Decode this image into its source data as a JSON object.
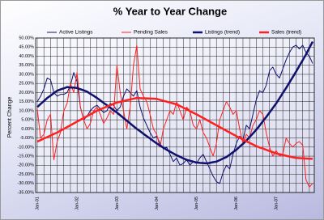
{
  "chart_data": {
    "type": "line",
    "title": "% Year to Year Change",
    "y_label": "Percent Change",
    "categories": [
      "Jan-01",
      null,
      null,
      null,
      null,
      null,
      null,
      null,
      null,
      null,
      null,
      null,
      "Jan-02",
      null,
      null,
      null,
      null,
      null,
      null,
      null,
      null,
      null,
      null,
      null,
      "Jan-03",
      null,
      null,
      null,
      null,
      null,
      null,
      null,
      null,
      null,
      null,
      null,
      "Jan-04",
      null,
      null,
      null,
      null,
      null,
      null,
      null,
      null,
      null,
      null,
      null,
      "Jan-05",
      null,
      null,
      null,
      null,
      null,
      null,
      null,
      null,
      null,
      null,
      null,
      "Jan-06",
      null,
      null,
      null,
      null,
      null,
      null,
      null,
      null,
      null,
      null,
      null,
      "Jan-07",
      null,
      null,
      null,
      null,
      null,
      null,
      null,
      null,
      null,
      null,
      null
    ],
    "ylim": [
      -35,
      50
    ],
    "yticks": [
      {
        "value": 50,
        "label": "50.00%"
      },
      {
        "value": 45,
        "label": "45.00%"
      },
      {
        "value": 40,
        "label": "40.00%"
      },
      {
        "value": 35,
        "label": "35.00%"
      },
      {
        "value": 30,
        "label": "30.00%"
      },
      {
        "value": 25,
        "label": "25.00%"
      },
      {
        "value": 20,
        "label": "20.00%"
      },
      {
        "value": 15,
        "label": "15.00%"
      },
      {
        "value": 10,
        "label": "10.00%"
      },
      {
        "value": 5,
        "label": "5.00%"
      },
      {
        "value": 0,
        "label": "0.00%"
      },
      {
        "value": -5,
        "label": "-5.00%"
      },
      {
        "value": -10,
        "label": "-10.00%"
      },
      {
        "value": -15,
        "label": "-15.00%"
      },
      {
        "value": -20,
        "label": "-20.00%"
      },
      {
        "value": -25,
        "label": "-25.00%"
      },
      {
        "value": -30,
        "label": "-30.00%"
      },
      {
        "value": -35,
        "label": "-35.00%"
      }
    ],
    "grid": true,
    "legend": "top",
    "series": [
      {
        "name": "Active Listings",
        "color": "#10106e",
        "width": 1,
        "values": [
          15,
          18,
          22,
          28,
          27,
          20,
          18,
          19,
          19,
          20,
          24,
          31,
          26,
          12,
          5,
          7,
          10,
          12,
          13,
          11,
          9,
          10,
          14,
          13,
          10,
          12,
          18,
          22,
          20,
          18,
          21,
          12,
          6,
          2,
          -2,
          -5,
          -4,
          -8,
          -11,
          -10,
          -14,
          -18,
          -16,
          -20,
          -19,
          -17,
          -20,
          -18,
          -19,
          -16,
          -14,
          -18,
          -22,
          -26,
          -29,
          -30,
          -24,
          -20,
          -22,
          -14,
          -8,
          -4,
          -6,
          2,
          0,
          8,
          16,
          21,
          20,
          24,
          32,
          34,
          30,
          28,
          33,
          38,
          42,
          45,
          46,
          44,
          46,
          42,
          40,
          36
        ]
      },
      {
        "name": "Pending Sales",
        "color": "#ff2020",
        "width": 1,
        "values": [
          11,
          -5,
          -3,
          5,
          8,
          -17,
          -7,
          -2,
          10,
          14,
          25,
          20,
          31,
          12,
          5,
          0,
          3,
          10,
          12,
          8,
          3,
          6,
          10,
          8,
          35,
          20,
          10,
          0,
          12,
          35,
          46,
          22,
          18,
          15,
          8,
          0,
          -3,
          -10,
          0,
          5,
          10,
          8,
          15,
          10,
          5,
          12,
          10,
          2,
          0,
          5,
          -2,
          -5,
          -10,
          -15,
          -8,
          5,
          10,
          15,
          12,
          8,
          10,
          0,
          -8,
          -3,
          -5,
          2,
          5,
          10,
          8,
          -2,
          -10,
          -15,
          -12,
          -15,
          -14,
          -5,
          -8,
          -10,
          -8,
          -7,
          -9,
          -28,
          -32,
          -30
        ]
      },
      {
        "name": "Listings (trend)",
        "color": "#10106e",
        "width": 2.5,
        "values": [
          12,
          13.7,
          15.3,
          17,
          18.3,
          19.7,
          21,
          21.7,
          22.3,
          23,
          22.8,
          22.7,
          22.5,
          21.8,
          21.2,
          20.5,
          19.3,
          18.2,
          17,
          15.7,
          14.3,
          13,
          11.7,
          10.3,
          9,
          7.5,
          6,
          4.5,
          3,
          1.5,
          0,
          -1.3,
          -2.7,
          -4,
          -5.3,
          -6.7,
          -8,
          -9.2,
          -10.3,
          -11.5,
          -12.5,
          -13.5,
          -14.5,
          -15.3,
          -16.2,
          -17,
          -17.5,
          -18,
          -18.5,
          -18.7,
          -18.8,
          -19,
          -18.7,
          -18.3,
          -18,
          -17.2,
          -16.3,
          -15.5,
          -14.2,
          -12.8,
          -11.5,
          -9.8,
          -8.2,
          -6.5,
          -4.5,
          -2.5,
          -0.5,
          1.8,
          4.2,
          6.5,
          9,
          11.5,
          14,
          16.8,
          19.7,
          22.5,
          25.5,
          28.5,
          31.5,
          34.7,
          37.8,
          41,
          44.5,
          48
        ]
      },
      {
        "name": "Sales (trend)",
        "color": "#ff2020",
        "width": 2.5,
        "values": [
          -7,
          -6.2,
          -5.3,
          -4.5,
          -3.7,
          -2.8,
          -2,
          -1,
          0,
          1,
          2,
          3,
          4,
          5,
          6,
          7,
          8,
          9,
          10,
          10.8,
          11.5,
          12.3,
          13,
          13.8,
          14.5,
          14.9,
          15.3,
          15.8,
          16.2,
          16.6,
          17,
          16.9,
          16.8,
          16.8,
          16.7,
          16.6,
          16.5,
          16,
          15.5,
          15,
          14.5,
          14,
          13.5,
          12.6,
          11.7,
          10.8,
          9.8,
          8.9,
          8,
          7,
          6,
          5,
          4,
          3,
          2,
          1,
          0,
          -1,
          -2,
          -3,
          -4,
          -4.9,
          -5.8,
          -6.8,
          -7.7,
          -8.6,
          -9.5,
          -10.2,
          -10.8,
          -11.5,
          -12.2,
          -12.8,
          -13.5,
          -13.9,
          -14.3,
          -14.8,
          -15.2,
          -15.6,
          -16,
          -16.1,
          -16.2,
          -16.3,
          -16.4,
          -16.5
        ]
      }
    ]
  }
}
